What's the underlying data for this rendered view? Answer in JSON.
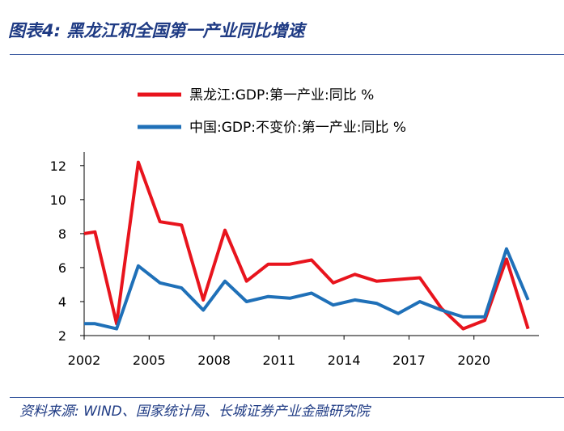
{
  "header": {
    "title": "图表4:  黑龙江和全国第一产业同比增速"
  },
  "footer": {
    "source": "资料来源:  WIND、国家统计局、长城证券产业金融研究院"
  },
  "colors": {
    "series_1": "#e8141d",
    "series_2": "#1f70b8",
    "title": "#1f3b84"
  },
  "chart_data": {
    "type": "line",
    "title": "",
    "xlabel": "",
    "ylabel": "",
    "x": [
      2002,
      2002.5,
      2003.5,
      2004.5,
      2005.5,
      2006.5,
      2007.5,
      2008.5,
      2009.5,
      2010.5,
      2011.5,
      2012.5,
      2013.5,
      2014.5,
      2015.5,
      2016.5,
      2017.5,
      2018.5,
      2019.5,
      2020.5,
      2021.5,
      2022.5
    ],
    "series": [
      {
        "name": "黑龙江:GDP:第一产业:同比 %",
        "color": "#e8141d",
        "values": [
          8.0,
          8.1,
          2.7,
          12.2,
          8.7,
          8.5,
          4.1,
          8.2,
          5.2,
          6.2,
          6.2,
          6.45,
          5.1,
          5.6,
          5.2,
          5.3,
          5.4,
          3.6,
          2.4,
          2.9,
          6.5,
          2.4
        ]
      },
      {
        "name": "中国:GDP:不变价:第一产业:同比 %",
        "color": "#1f70b8",
        "values": [
          2.7,
          2.7,
          2.4,
          6.1,
          5.1,
          4.8,
          3.5,
          5.2,
          4.0,
          4.3,
          4.2,
          4.5,
          3.8,
          4.1,
          3.9,
          3.3,
          4.0,
          3.5,
          3.1,
          3.1,
          7.1,
          4.1
        ]
      }
    ],
    "xticks": [
      "2002",
      "2005",
      "2008",
      "2011",
      "2014",
      "2017",
      "2020"
    ],
    "xtick_values": [
      2002,
      2005,
      2008,
      2011,
      2014,
      2017,
      2020
    ],
    "yticks": [
      "2",
      "4",
      "6",
      "8",
      "10",
      "12"
    ],
    "ytick_values": [
      2,
      4,
      6,
      8,
      10,
      12
    ],
    "xlim": [
      2002,
      2023
    ],
    "ylim": [
      2,
      12.8
    ],
    "grid": false,
    "legend": "top-center"
  }
}
